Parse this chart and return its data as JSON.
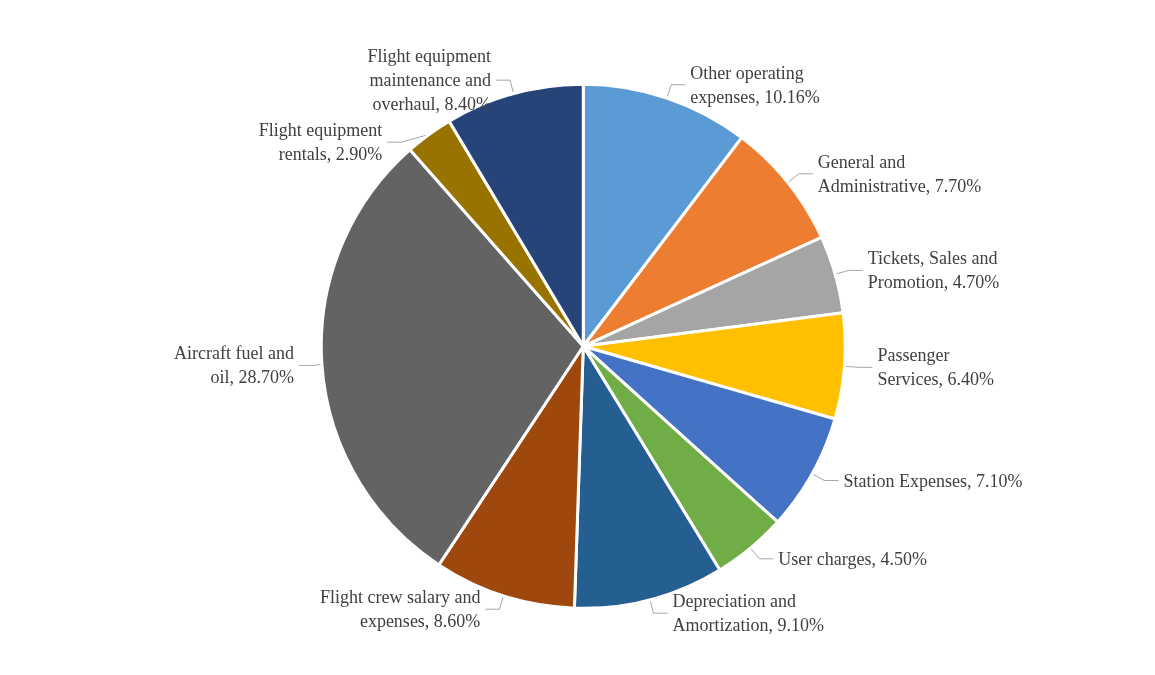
{
  "chart_data": {
    "type": "pie",
    "categories": [
      "Other operating expenses",
      "General and Administrative",
      "Tickets, Sales and Promotion",
      "Passenger Services",
      "Station Expenses",
      "User charges",
      "Depreciation and Amortization",
      "Flight crew salary and expenses",
      "Aircraft fuel and oil",
      "Flight equipment rentals",
      "Flight equipment maintenance and overhaul"
    ],
    "values": [
      10.16,
      7.7,
      4.7,
      6.4,
      7.1,
      4.5,
      9.1,
      8.6,
      28.7,
      2.9,
      8.4
    ],
    "value_labels": [
      "10.16%",
      "7.70%",
      "4.70%",
      "6.40%",
      "7.10%",
      "4.50%",
      "9.10%",
      "8.60%",
      "28.70%",
      "2.90%",
      "8.40%"
    ],
    "colors": [
      "#5b9bd5",
      "#ed7d31",
      "#a5a5a5",
      "#ffc000",
      "#4472c4",
      "#70ad47",
      "#255e91",
      "#9e480e",
      "#636363",
      "#997300",
      "#264478"
    ],
    "legend": false
  }
}
